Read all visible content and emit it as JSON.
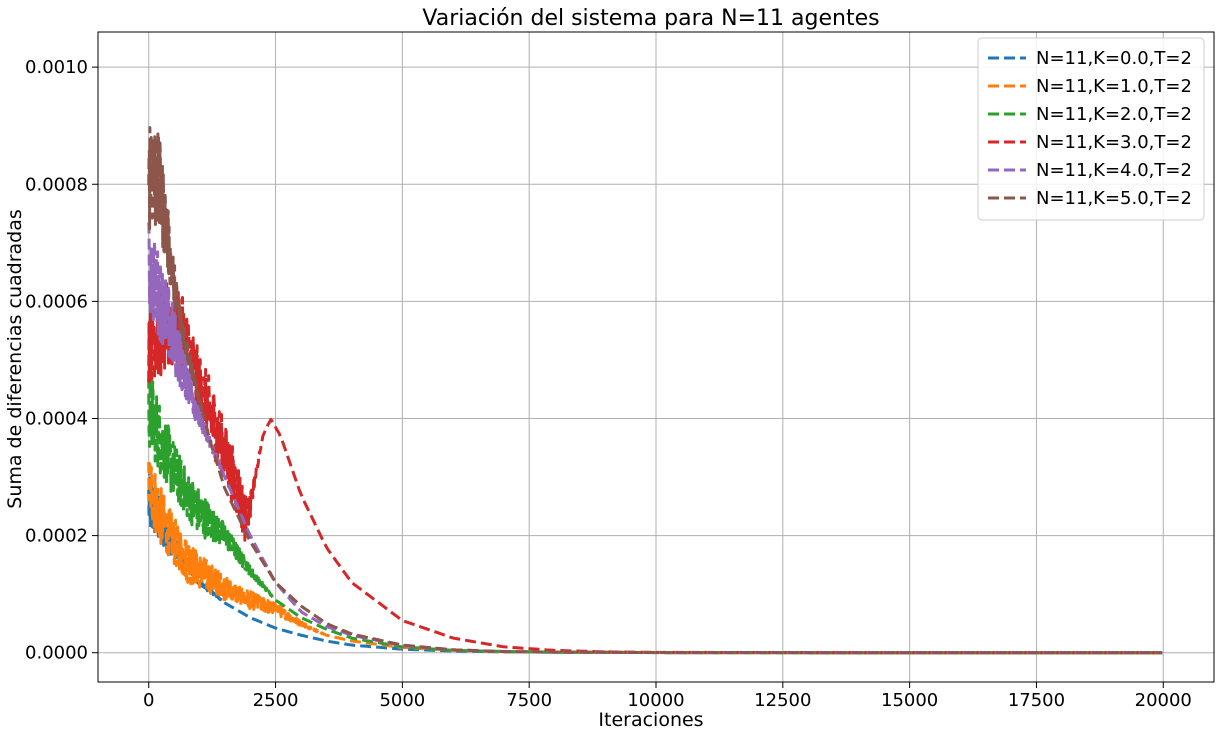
{
  "chart_data": {
    "type": "line",
    "title": "Variación del sistema para N=11 agentes",
    "xlabel": "Iteraciones",
    "ylabel": "Suma de diferencias cuadradas",
    "xlim": [
      -1000,
      21000
    ],
    "ylim": [
      -5e-05,
      0.00106
    ],
    "xticks": [
      0,
      2500,
      5000,
      7500,
      10000,
      12500,
      15000,
      17500,
      20000
    ],
    "xtick_labels": [
      "0",
      "2500",
      "5000",
      "7500",
      "10000",
      "12500",
      "15000",
      "17500",
      "20000"
    ],
    "yticks": [
      0.0,
      0.0002,
      0.0004,
      0.0006,
      0.0008,
      0.001
    ],
    "ytick_labels": [
      "0.0000",
      "0.0002",
      "0.0004",
      "0.0006",
      "0.0008",
      "0.0010"
    ],
    "grid": true,
    "line_style": "dashed",
    "legend_position": "top-right",
    "series": [
      {
        "name": "N=11,K=0.0,T=2",
        "color": "#1f77b4",
        "x": [
          0,
          250,
          500,
          750,
          1000,
          1500,
          2000,
          2500,
          3000,
          3500,
          4000,
          5000,
          6000,
          7000,
          8000,
          10000,
          15000,
          20000
        ],
        "y": [
          0.00026,
          0.00022,
          0.00018,
          0.00015,
          0.00012,
          8.5e-05,
          6e-05,
          4.2e-05,
          3e-05,
          2e-05,
          1.3e-05,
          6e-06,
          3e-06,
          1.5e-06,
          8e-07,
          2e-07,
          0.0,
          0.0
        ],
        "noise": [
          6e-05,
          4e-05,
          2e-05,
          1e-05,
          5e-06,
          0,
          0,
          0,
          0,
          0,
          0,
          0,
          0,
          0,
          0,
          0,
          0,
          0
        ]
      },
      {
        "name": "N=11,K=1.0,T=2",
        "color": "#ff7f0e",
        "x": [
          0,
          250,
          500,
          750,
          1000,
          1500,
          2000,
          2500,
          3000,
          3500,
          4000,
          5000,
          6000,
          7000,
          8000,
          10000,
          15000,
          20000
        ],
        "y": [
          0.00029,
          0.00023,
          0.00019,
          0.00016,
          0.00014,
          0.00011,
          9e-05,
          7.5e-05,
          5e-05,
          3e-05,
          2e-05,
          9e-06,
          4e-06,
          2e-06,
          1e-06,
          3e-07,
          0.0,
          0.0
        ],
        "noise": [
          6e-05,
          5e-05,
          4e-05,
          4e-05,
          3e-05,
          2e-05,
          1.5e-05,
          1e-05,
          4e-06,
          0,
          0,
          0,
          0,
          0,
          0,
          0,
          0,
          0
        ]
      },
      {
        "name": "N=11,K=2.0,T=2",
        "color": "#2ca02c",
        "x": [
          0,
          250,
          500,
          750,
          1000,
          1500,
          2000,
          2500,
          3000,
          3500,
          4000,
          5000,
          6000,
          7000,
          8000,
          10000,
          15000,
          20000
        ],
        "y": [
          0.00042,
          0.00036,
          0.00031,
          0.00027,
          0.00024,
          0.0002,
          0.00014,
          9e-05,
          6e-05,
          4e-05,
          2.5e-05,
          1e-05,
          4e-06,
          2e-06,
          1e-06,
          3e-07,
          0.0,
          0.0
        ],
        "noise": [
          7e-05,
          6e-05,
          5e-05,
          4e-05,
          4e-05,
          2e-05,
          8e-06,
          0,
          0,
          0,
          0,
          0,
          0,
          0,
          0,
          0,
          0,
          0
        ]
      },
      {
        "name": "N=11,K=3.0,T=2",
        "color": "#d62728",
        "x": [
          0,
          250,
          500,
          750,
          1000,
          1250,
          1500,
          1750,
          1900,
          2000,
          2100,
          2250,
          2400,
          2600,
          3000,
          3500,
          4000,
          5000,
          6000,
          7000,
          8000,
          9000,
          10000,
          15000,
          20000
        ],
        "y": [
          0.00054,
          0.00055,
          0.00056,
          0.00052,
          0.00045,
          0.0004,
          0.00034,
          0.00028,
          0.00023,
          0.00025,
          0.0003,
          0.00037,
          0.0004,
          0.00037,
          0.00027,
          0.00018,
          0.00012,
          5.5e-05,
          2.5e-05,
          1e-05,
          4e-06,
          1.5e-06,
          6e-07,
          0.0,
          0.0
        ],
        "noise": [
          8e-05,
          8e-05,
          8e-05,
          7e-05,
          6e-05,
          6e-05,
          5e-05,
          5e-05,
          4e-05,
          2e-05,
          1e-05,
          0,
          0,
          0,
          0,
          0,
          0,
          0,
          0,
          0,
          0,
          0,
          0,
          0,
          0
        ]
      },
      {
        "name": "N=11,K=4.0,T=2",
        "color": "#9467bd",
        "x": [
          0,
          250,
          500,
          750,
          1000,
          1250,
          1500,
          2000,
          2500,
          3000,
          3500,
          4000,
          5000,
          6000,
          7000,
          8000,
          10000,
          15000,
          20000
        ],
        "y": [
          0.00066,
          0.0006,
          0.00053,
          0.00047,
          0.0004,
          0.00035,
          0.0003,
          0.0002,
          0.00012,
          7e-05,
          4.5e-05,
          3e-05,
          1.2e-05,
          5e-06,
          2e-06,
          1e-06,
          3e-07,
          0.0,
          0.0
        ],
        "noise": [
          8e-05,
          7e-05,
          6e-05,
          4e-05,
          2e-05,
          1e-05,
          0,
          0,
          0,
          0,
          0,
          0,
          0,
          0,
          0,
          0,
          0,
          0,
          0
        ]
      },
      {
        "name": "N=11,K=5.0,T=2",
        "color": "#8c564b",
        "x": [
          0,
          100,
          250,
          350,
          500,
          600,
          750,
          1000,
          1250,
          1500,
          2000,
          2500,
          3000,
          3500,
          4000,
          5000,
          6000,
          7000,
          8000,
          10000,
          15000,
          20000
        ],
        "y": [
          0.00085,
          0.00082,
          0.00078,
          0.00072,
          0.00063,
          0.00058,
          0.00052,
          0.00043,
          0.00035,
          0.00028,
          0.00019,
          0.00012,
          8e-05,
          5e-05,
          3.2e-05,
          1.3e-05,
          5e-06,
          2e-06,
          1e-06,
          3e-07,
          0.0,
          0.0
        ],
        "noise": [
          0.00013,
          0.0001,
          8e-05,
          6e-05,
          4e-05,
          3e-05,
          2e-05,
          5e-06,
          0,
          0,
          0,
          0,
          0,
          0,
          0,
          0,
          0,
          0,
          0,
          0,
          0,
          0
        ]
      }
    ]
  }
}
